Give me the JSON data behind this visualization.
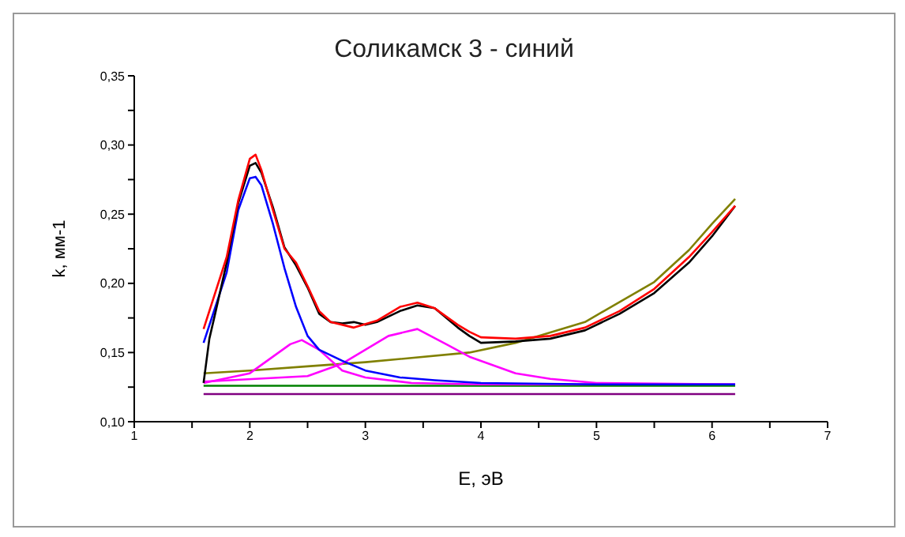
{
  "chart_data": {
    "type": "line",
    "title": "Соликамск 3 - синий",
    "xlabel": "E, эВ",
    "ylabel": "k, мм-1",
    "xlim": [
      1,
      7
    ],
    "xticks": [
      1,
      {
        "value": 1.5,
        "label": null
      },
      2,
      {
        "value": 2.5,
        "label": null
      },
      3,
      {
        "value": 3.5,
        "label": null
      },
      4,
      {
        "value": 4.5,
        "label": null
      },
      5,
      {
        "value": 5.5,
        "label": null
      },
      6,
      {
        "value": 6.5,
        "label": null
      },
      7
    ],
    "ylim": [
      0.1,
      0.35
    ],
    "yticks": [
      {
        "value": 0.1,
        "label": "0,10"
      },
      {
        "value": 0.125,
        "label": null
      },
      {
        "value": 0.15,
        "label": "0,15"
      },
      {
        "value": 0.175,
        "label": null
      },
      {
        "value": 0.2,
        "label": "0,20"
      },
      {
        "value": 0.225,
        "label": null
      },
      {
        "value": 0.25,
        "label": "0,25"
      },
      {
        "value": 0.275,
        "label": null
      },
      {
        "value": 0.3,
        "label": "0,30"
      },
      {
        "value": 0.325,
        "label": null
      },
      {
        "value": 0.35,
        "label": "0,35"
      }
    ],
    "series": [
      {
        "color": "#800080",
        "x": [
          1.6,
          6.2
        ],
        "values": [
          0.12,
          0.12
        ]
      },
      {
        "color": "#008000",
        "x": [
          1.6,
          6.2
        ],
        "values": [
          0.126,
          0.126
        ]
      },
      {
        "color": "#808000",
        "x": [
          1.6,
          2.0,
          2.5,
          3.0,
          3.9,
          4.3,
          4.9,
          5.5,
          5.8,
          6.0,
          6.2
        ],
        "values": [
          0.135,
          0.137,
          0.14,
          0.143,
          0.15,
          0.157,
          0.172,
          0.201,
          0.224,
          0.243,
          0.261
        ]
      },
      {
        "color": "#ff00ff",
        "x": [
          1.6,
          2.0,
          2.2,
          2.35,
          2.45,
          2.6,
          2.8,
          3.0,
          3.4,
          4.0,
          6.2
        ],
        "values": [
          0.128,
          0.135,
          0.147,
          0.156,
          0.159,
          0.152,
          0.137,
          0.132,
          0.128,
          0.127,
          0.127
        ]
      },
      {
        "color": "#ff00ff",
        "x": [
          1.6,
          2.5,
          2.8,
          3.0,
          3.2,
          3.45,
          3.7,
          3.9,
          4.0,
          4.3,
          4.6,
          5.0,
          6.2
        ],
        "values": [
          0.129,
          0.133,
          0.142,
          0.152,
          0.162,
          0.167,
          0.156,
          0.147,
          0.144,
          0.135,
          0.131,
          0.128,
          0.127
        ]
      },
      {
        "color": "#0000ff",
        "x": [
          1.6,
          1.8,
          1.9,
          2.0,
          2.05,
          2.1,
          2.2,
          2.3,
          2.4,
          2.5,
          2.6,
          2.8,
          3.0,
          3.3,
          3.6,
          4.0,
          5.0,
          6.2
        ],
        "values": [
          0.157,
          0.208,
          0.253,
          0.276,
          0.277,
          0.271,
          0.243,
          0.211,
          0.183,
          0.162,
          0.152,
          0.144,
          0.137,
          0.132,
          0.13,
          0.128,
          0.127,
          0.127
        ]
      },
      {
        "color": "#000000",
        "x": [
          1.6,
          1.65,
          1.7,
          1.8,
          1.9,
          2.0,
          2.05,
          2.1,
          2.2,
          2.3,
          2.4,
          2.5,
          2.6,
          2.7,
          2.8,
          2.9,
          3.0,
          3.1,
          3.3,
          3.45,
          3.6,
          3.8,
          3.9,
          4.0,
          4.3,
          4.6,
          4.9,
          5.2,
          5.5,
          5.8,
          6.0,
          6.2
        ],
        "values": [
          0.128,
          0.16,
          0.178,
          0.215,
          0.258,
          0.285,
          0.287,
          0.28,
          0.255,
          0.226,
          0.213,
          0.197,
          0.178,
          0.172,
          0.171,
          0.172,
          0.17,
          0.172,
          0.18,
          0.184,
          0.182,
          0.168,
          0.162,
          0.157,
          0.158,
          0.16,
          0.166,
          0.178,
          0.193,
          0.215,
          0.234,
          0.256
        ]
      },
      {
        "color": "#ff0000",
        "x": [
          1.6,
          1.8,
          1.9,
          2.0,
          2.05,
          2.1,
          2.2,
          2.3,
          2.4,
          2.5,
          2.6,
          2.7,
          2.9,
          3.1,
          3.3,
          3.45,
          3.6,
          3.8,
          3.9,
          4.0,
          4.3,
          4.6,
          4.9,
          5.2,
          5.5,
          5.8,
          6.0,
          6.2
        ],
        "values": [
          0.167,
          0.219,
          0.26,
          0.29,
          0.293,
          0.282,
          0.253,
          0.225,
          0.215,
          0.198,
          0.18,
          0.172,
          0.168,
          0.173,
          0.183,
          0.186,
          0.182,
          0.17,
          0.165,
          0.161,
          0.16,
          0.162,
          0.168,
          0.18,
          0.196,
          0.219,
          0.237,
          0.256
        ]
      }
    ]
  }
}
